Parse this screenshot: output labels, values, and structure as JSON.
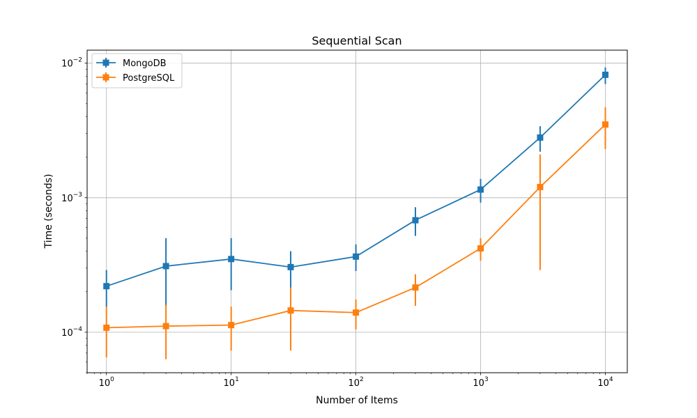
{
  "chart_data": {
    "type": "line",
    "title": "Sequential Scan",
    "xlabel": "Number of Items",
    "ylabel": "Time (seconds)",
    "xscale": "log",
    "yscale": "log",
    "xlim": [
      0.7,
      15000
    ],
    "ylim": [
      5e-05,
      0.0125
    ],
    "grid": true,
    "legend_position": "top-left",
    "x_ticks": [
      {
        "base": "10",
        "exp": "0",
        "value": 1
      },
      {
        "base": "10",
        "exp": "1",
        "value": 10
      },
      {
        "base": "10",
        "exp": "2",
        "value": 100
      },
      {
        "base": "10",
        "exp": "3",
        "value": 1000
      },
      {
        "base": "10",
        "exp": "4",
        "value": 10000
      }
    ],
    "y_ticks": [
      {
        "base": "10",
        "exp": "−4",
        "value": 0.0001
      },
      {
        "base": "10",
        "exp": "−3",
        "value": 0.001
      },
      {
        "base": "10",
        "exp": "−2",
        "value": 0.01
      }
    ],
    "x": [
      1,
      3,
      10,
      30,
      100,
      300,
      1000,
      3000,
      10000
    ],
    "series": [
      {
        "name": "MongoDB",
        "color": "#1f77b4",
        "marker": "square",
        "values": [
          0.00022,
          0.00031,
          0.00035,
          0.000305,
          0.000365,
          0.00068,
          0.00115,
          0.0028,
          0.0082
        ],
        "error_low": [
          0.000155,
          0.000155,
          0.000205,
          0.00021,
          0.000285,
          0.00052,
          0.00092,
          0.0022,
          0.007
        ],
        "error_high": [
          0.00029,
          0.0005,
          0.0005,
          0.0004,
          0.00045,
          0.00085,
          0.00138,
          0.0034,
          0.0093
        ]
      },
      {
        "name": "PostgreSQL",
        "color": "#ff7f0e",
        "marker": "square",
        "values": [
          0.000108,
          0.000111,
          0.000113,
          0.000145,
          0.00014,
          0.000215,
          0.00042,
          0.0012,
          0.0035
        ],
        "error_low": [
          6.5e-05,
          6.3e-05,
          7.3e-05,
          7.3e-05,
          0.000105,
          0.000157,
          0.00034,
          0.00029,
          0.0023
        ],
        "error_high": [
          0.000155,
          0.00016,
          0.000155,
          0.000215,
          0.000175,
          0.00027,
          0.0005,
          0.0021,
          0.0047
        ]
      }
    ]
  }
}
